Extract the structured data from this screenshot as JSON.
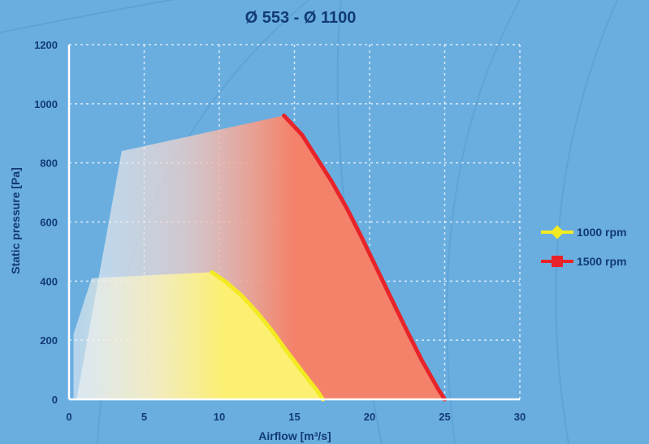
{
  "chart_data": {
    "type": "line",
    "title": "Ø 553 - Ø 1100",
    "xlabel": "Airflow [m³/s]",
    "ylabel": "Static pressure [Pa]",
    "xlim": [
      0,
      30
    ],
    "ylim": [
      0,
      1200
    ],
    "x_ticks": [
      "0",
      "5",
      "10",
      "15",
      "20",
      "25",
      "30"
    ],
    "y_ticks": [
      "0",
      "200",
      "400",
      "600",
      "800",
      "1000",
      "1200"
    ],
    "grid": true,
    "legend_position": "right",
    "series": [
      {
        "name": "1000 rpm",
        "color": "#f3ea22",
        "marker": "diamond",
        "x": [
          9.5,
          10.5,
          11.5,
          12.5,
          13.5,
          14.5,
          15.5,
          16.5,
          16.9
        ],
        "y": [
          430,
          395,
          350,
          295,
          232,
          162,
          95,
          30,
          0
        ]
      },
      {
        "name": "1500 rpm",
        "color": "#e8242a",
        "marker": "square",
        "x": [
          14.3,
          15.5,
          16.5,
          17.5,
          18.5,
          19.5,
          20.5,
          21.5,
          22.5,
          23.5,
          24.5,
          25.0
        ],
        "y": [
          960,
          895,
          815,
          735,
          645,
          545,
          440,
          335,
          230,
          130,
          40,
          0
        ]
      }
    ],
    "operating_areas": [
      {
        "series": "1000 rpm",
        "x": [
          0.3,
          0.3,
          1.5,
          9.5
        ],
        "y": [
          0,
          220,
          410,
          430
        ]
      },
      {
        "series": "1500 rpm",
        "x": [
          0.5,
          3.5,
          14.3
        ],
        "y": [
          0,
          840,
          960
        ]
      }
    ]
  }
}
